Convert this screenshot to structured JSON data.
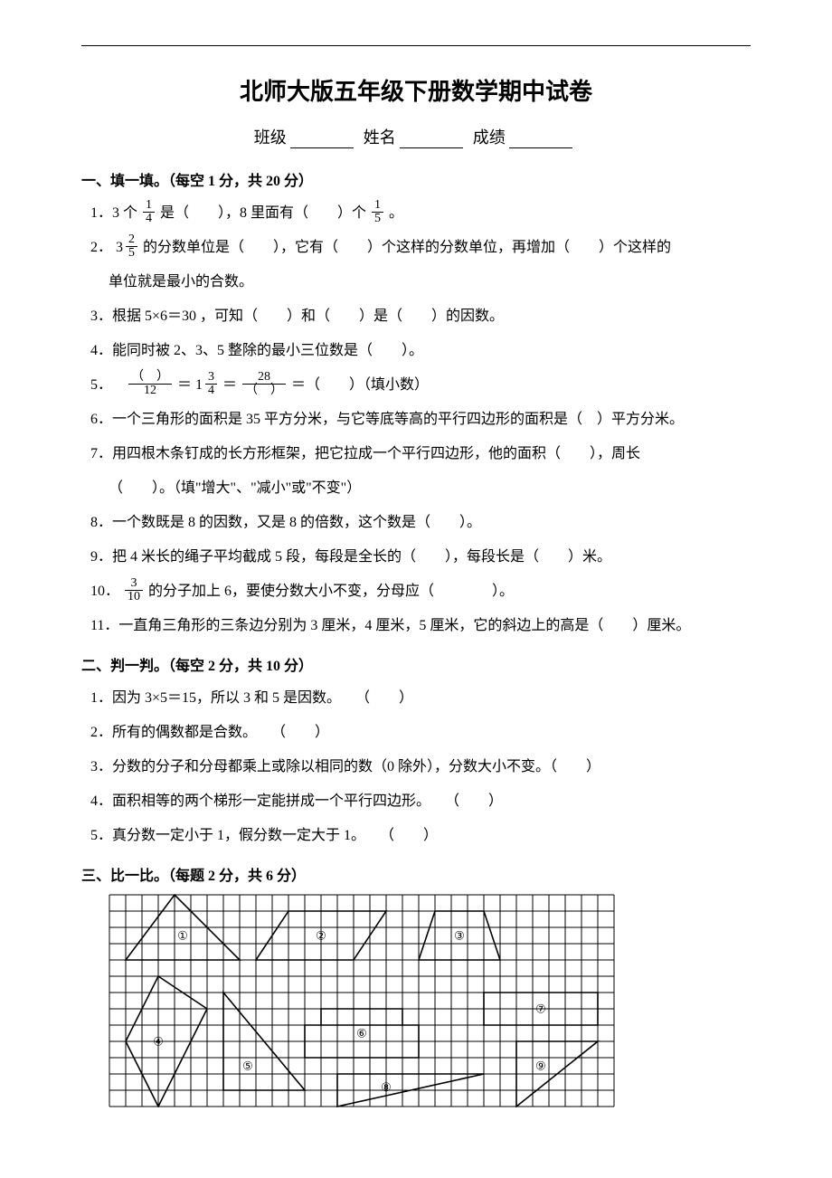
{
  "title": "北师大版五年级下册数学期中试卷",
  "info": {
    "class_label": "班级",
    "name_label": "姓名",
    "score_label": "成绩"
  },
  "sections": {
    "s1": {
      "header": "一、填一填。（每空 1 分，共 20 分）",
      "q1_a": "1．3 个",
      "q1_f1n": "1",
      "q1_f1d": "4",
      "q1_b": "是（　　），8 里面有（　　）个",
      "q1_f2n": "1",
      "q1_f2d": "5",
      "q1_c": "。",
      "q2_a": "2．",
      "q2_whole": "3",
      "q2_f1n": "2",
      "q2_f1d": "5",
      "q2_b": "的分数单位是（　　），它有（　　）个这样的分数单位，再增加（　　）个这样的",
      "q2_c": "单位就是最小的合数。",
      "q3": "3．根据 5×6＝30 ，可知（　　）和（　　）是（　　）的因数。",
      "q4": "4．能同时被 2、3、5 整除的最小三位数是（　　）。",
      "q5_a": "5．",
      "q5_f1n": "（　）",
      "q5_f1d": "12",
      "q5_eq1": "＝",
      "q5_whole": "1",
      "q5_f2n": "3",
      "q5_f2d": "4",
      "q5_eq2": "＝",
      "q5_f3n": "28",
      "q5_f3d": "（　）",
      "q5_b": "＝（　　）（填小数）",
      "q6": "6．一个三角形的面积是 35 平方分米，与它等底等高的平行四边形的面积是（　）平方分米。",
      "q7_a": "7．用四根木条钉成的长方形框架，把它拉成一个平行四边形，他的面积（　　），周长",
      "q7_b": "（　　）。（填\"增大\"、\"减小\"或\"不变\"）",
      "q8": "8．一个数既是 8 的因数，又是 8 的倍数，这个数是（　　）。",
      "q9": "9．把 4 米长的绳子平均截成 5 段，每段是全长的（　　），每段长是（　　）米。",
      "q10_a": "10．",
      "q10_f1n": "3",
      "q10_f1d": "10",
      "q10_b": "的分子加上 6，要使分数大小不变，分母应（　　　　）。",
      "q11": "11．一直角三角形的三条边分别为 3 厘米，4 厘米，5 厘米，它的斜边上的高是（　　）厘米。"
    },
    "s2": {
      "header": "二、判一判。（每空 2 分，共 10 分）",
      "q1": "1．因为 3×5＝15，所以 3 和 5 是因数。　　（　　）",
      "q2": "2．所有的偶数都是合数。　　（　　）",
      "q3": "3．分数的分子和分母都乘上或除以相同的数（0 除外），分数大小不变。（　　）",
      "q4": "4．面积相等的两个梯形一定能拼成一个平行四边形。　　（　　）",
      "q5": "5．真分数一定小于 1，假分数一定大于 1。　　（　　）"
    },
    "s3": {
      "header": "三、比一比。（每题 2 分，共 6 分）"
    }
  },
  "grid": {
    "cell": 18,
    "cols": 31,
    "rows": 13,
    "stroke": "#000000",
    "stroke_width": 1,
    "shape_width": 1.6,
    "labels": {
      "l1": "①",
      "l2": "②",
      "l3": "③",
      "l4": "④",
      "l5": "⑤",
      "l6": "⑥",
      "l7": "⑦",
      "l8": "⑧",
      "l9": "⑨"
    }
  }
}
